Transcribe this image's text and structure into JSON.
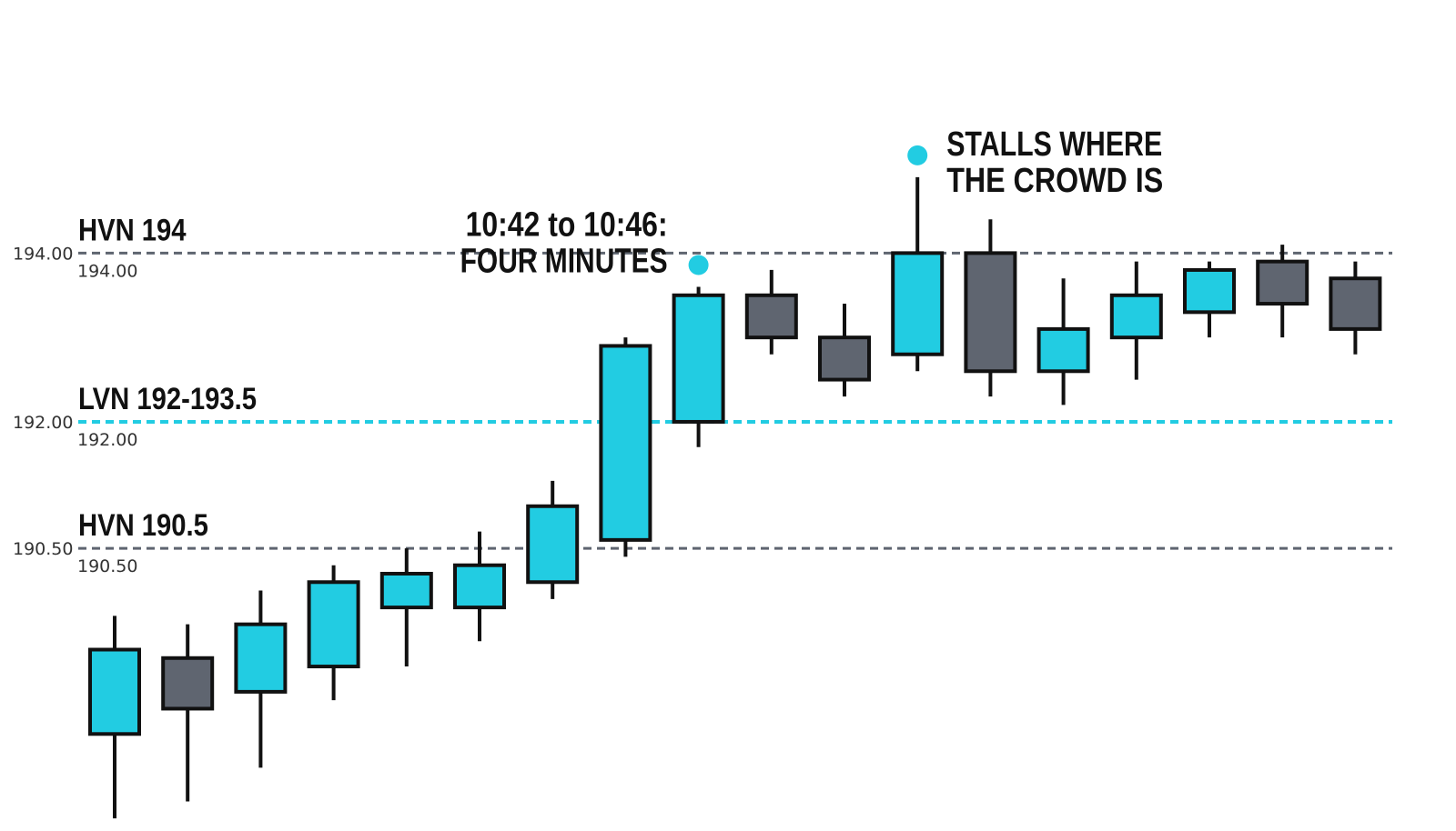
{
  "colors": {
    "up": "#22cce2",
    "down": "#5f6570",
    "outline": "#111111",
    "hvn_line": "#5f6570",
    "lvn_line": "#22cce2",
    "marker": "#22cce2"
  },
  "chart_data": {
    "type": "candlestick",
    "ylim": [
      187.15,
      197.0
    ],
    "grid": false,
    "levels": [
      {
        "name": "HVN 194",
        "value": 194.0,
        "tick_left": "194.00",
        "tick_right": "194.00",
        "style": "hvn"
      },
      {
        "name": "LVN 192-193.5",
        "value": 192.0,
        "tick_left": "192.00",
        "tick_right": "192.00",
        "style": "lvn"
      },
      {
        "name": "HVN 190.5",
        "value": 190.5,
        "tick_left": "190.50",
        "tick_right": "190.50",
        "style": "hvn"
      }
    ],
    "candles": [
      {
        "open": 188.3,
        "high": 189.7,
        "low": 187.3,
        "close": 189.3
      },
      {
        "open": 189.2,
        "high": 189.6,
        "low": 187.5,
        "close": 188.6
      },
      {
        "open": 188.8,
        "high": 190.0,
        "low": 187.9,
        "close": 189.6
      },
      {
        "open": 189.1,
        "high": 190.3,
        "low": 188.7,
        "close": 190.1
      },
      {
        "open": 189.8,
        "high": 190.5,
        "low": 189.1,
        "close": 190.2
      },
      {
        "open": 189.8,
        "high": 190.7,
        "low": 189.4,
        "close": 190.3
      },
      {
        "open": 190.1,
        "high": 191.3,
        "low": 189.9,
        "close": 191.0
      },
      {
        "open": 190.6,
        "high": 193.0,
        "low": 190.4,
        "close": 192.9
      },
      {
        "open": 192.0,
        "high": 193.6,
        "low": 191.7,
        "close": 193.5
      },
      {
        "open": 193.5,
        "high": 193.8,
        "low": 192.8,
        "close": 193.0
      },
      {
        "open": 193.0,
        "high": 193.4,
        "low": 192.3,
        "close": 192.5
      },
      {
        "open": 192.8,
        "high": 194.9,
        "low": 192.6,
        "close": 194.0
      },
      {
        "open": 194.0,
        "high": 194.4,
        "low": 192.3,
        "close": 192.6
      },
      {
        "open": 192.6,
        "high": 193.7,
        "low": 192.2,
        "close": 193.1
      },
      {
        "open": 193.0,
        "high": 193.9,
        "low": 192.5,
        "close": 193.5
      },
      {
        "open": 193.3,
        "high": 193.9,
        "low": 193.0,
        "close": 193.8
      },
      {
        "open": 193.9,
        "high": 194.1,
        "low": 193.0,
        "close": 193.4
      },
      {
        "open": 193.7,
        "high": 193.9,
        "low": 192.8,
        "close": 193.1
      }
    ],
    "annotations": [
      {
        "lines": [
          "10:42 to 10:46:",
          "FOUR MINUTES"
        ],
        "candle_index": 8,
        "align": "left-of-marker"
      },
      {
        "lines": [
          "STALLS WHERE",
          "THE CROWD IS"
        ],
        "candle_index": 11,
        "align": "right-of-marker"
      }
    ]
  }
}
